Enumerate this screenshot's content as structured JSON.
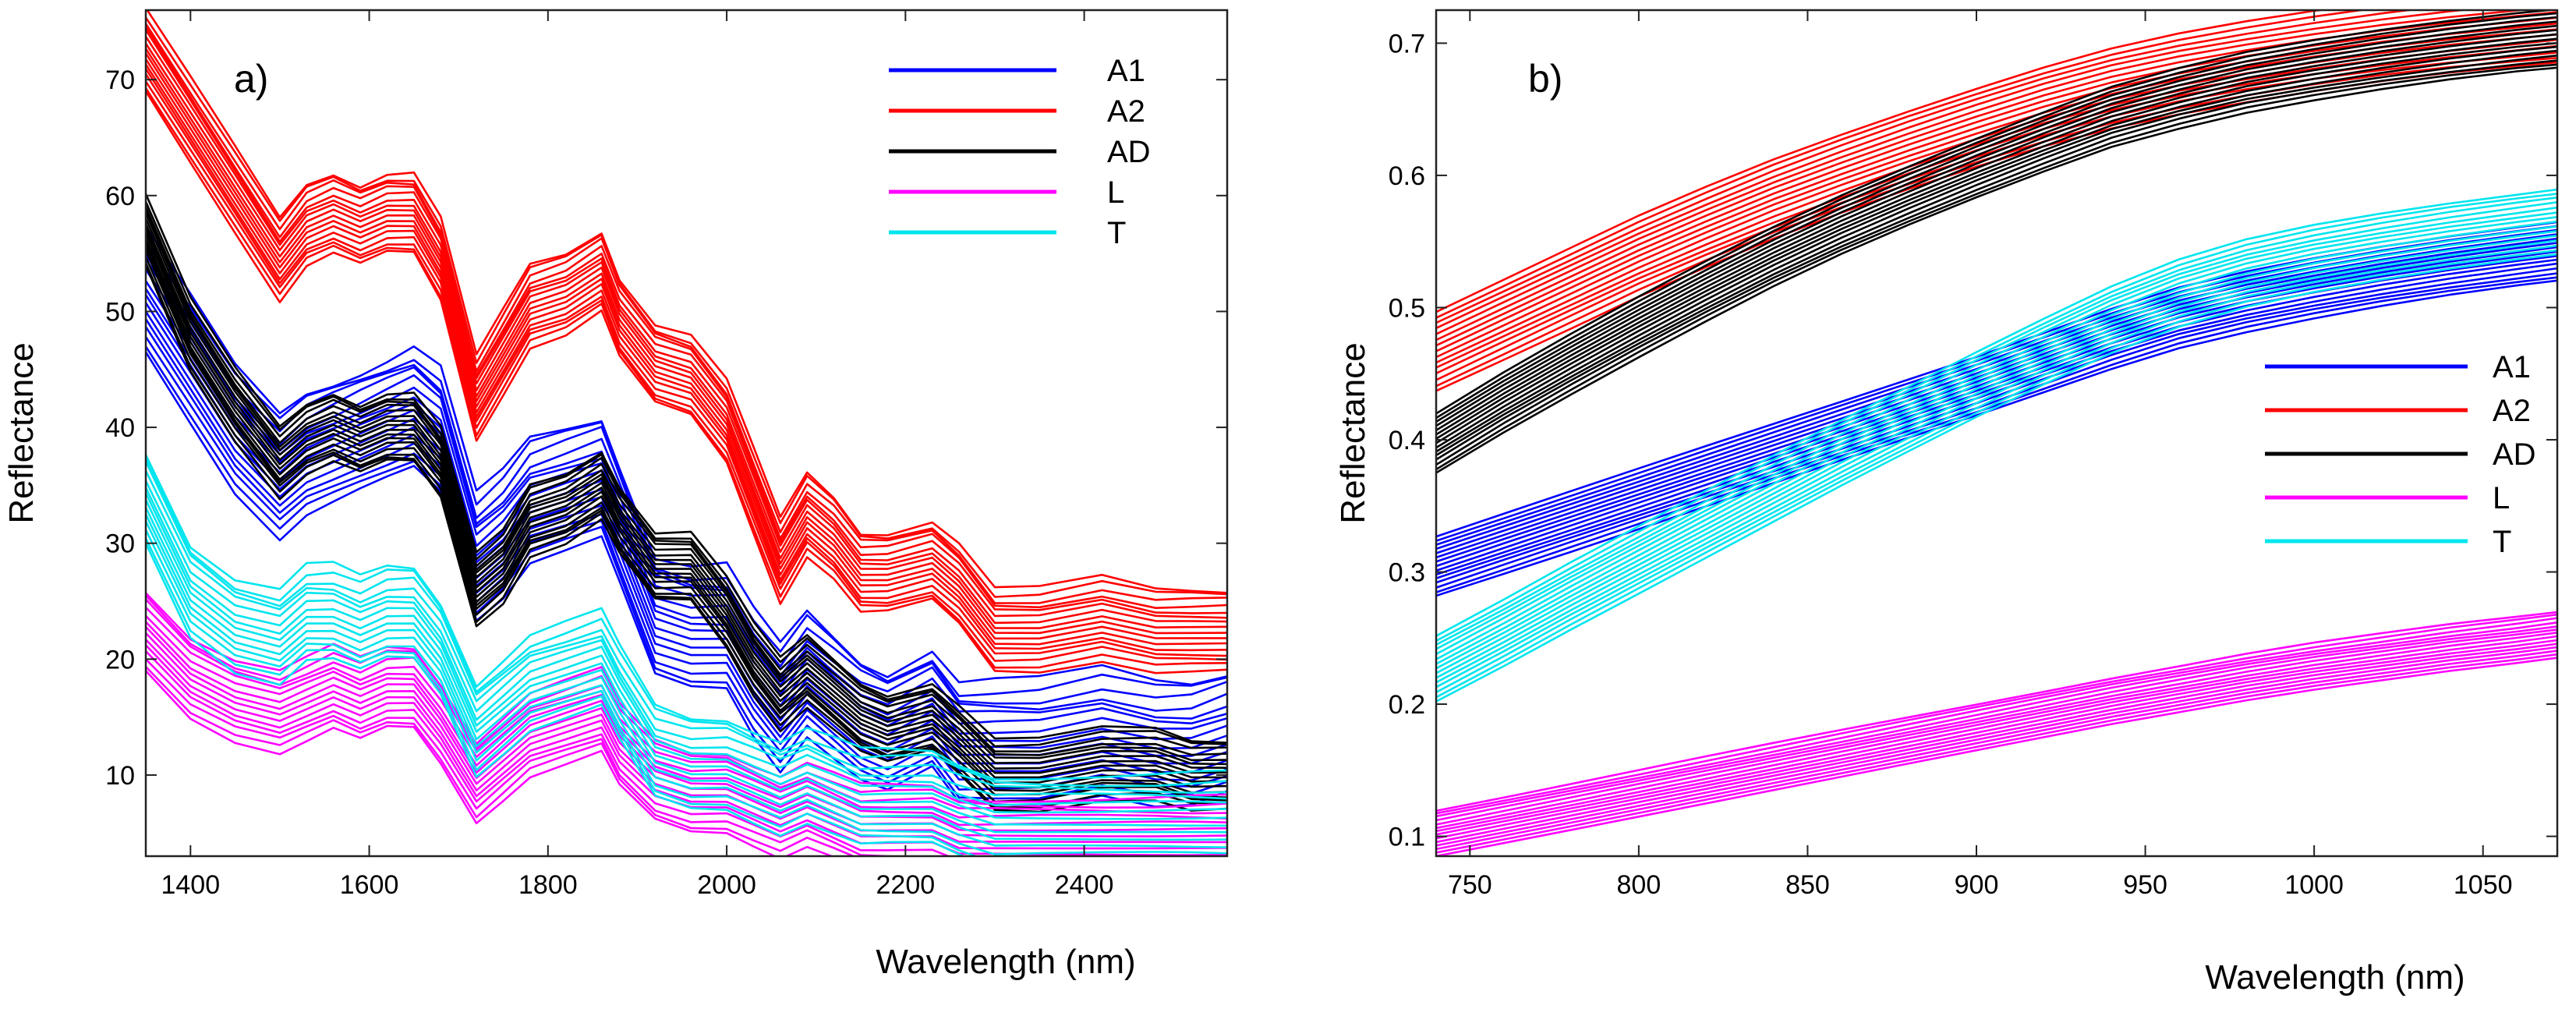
{
  "chart_data": [
    {
      "type": "line",
      "panel_label": "a)",
      "title": "",
      "xlabel": "Wavelength (nm)",
      "ylabel": "Reflectance",
      "xlim": [
        1350,
        2560
      ],
      "ylim": [
        3,
        76
      ],
      "xticks": [
        1400,
        1600,
        1800,
        2000,
        2200,
        2400
      ],
      "yticks": [
        10,
        20,
        30,
        40,
        50,
        60,
        70
      ],
      "grid": false,
      "legend_position": "top-right",
      "x": [
        1350,
        1400,
        1450,
        1500,
        1530,
        1560,
        1590,
        1620,
        1650,
        1680,
        1720,
        1750,
        1780,
        1820,
        1860,
        1880,
        1920,
        1960,
        2000,
        2030,
        2060,
        2090,
        2120,
        2150,
        2180,
        2230,
        2260,
        2300,
        2350,
        2420,
        2480,
        2520,
        2560
      ],
      "series": [
        {
          "name": "A1",
          "color": "#0000ff",
          "count": 16,
          "spread": [
            -3.5,
            7
          ],
          "values": [
            50,
            44,
            38,
            34,
            36,
            37,
            38,
            39,
            40,
            38,
            27,
            29,
            32,
            33,
            34,
            30,
            22,
            21,
            21,
            17,
            14,
            17,
            15,
            13,
            12,
            14,
            11,
            11,
            11,
            12,
            11,
            11,
            12
          ]
        },
        {
          "name": "A2",
          "color": "#ff0000",
          "count": 16,
          "spread": [
            -3,
            4
          ],
          "values": [
            72,
            66,
            60,
            54,
            57,
            58,
            57,
            58,
            58,
            54,
            42,
            46,
            50,
            51,
            53,
            49,
            45,
            44,
            40,
            34,
            28,
            32,
            30,
            27,
            27,
            28,
            26,
            22,
            22,
            23,
            22,
            22,
            22
          ]
        },
        {
          "name": "AD",
          "color": "#000000",
          "count": 16,
          "spread": [
            -3,
            3
          ],
          "values": [
            57,
            48,
            42,
            37,
            39,
            40,
            39,
            40,
            40,
            37,
            26,
            28,
            32,
            33,
            35,
            32,
            28,
            28,
            24,
            20,
            17,
            19,
            17,
            15,
            14,
            15,
            13,
            10,
            10,
            11,
            11,
            10,
            10
          ]
        },
        {
          "name": "L",
          "color": "#ff00ff",
          "count": 14,
          "spread": [
            -3,
            4
          ],
          "values": [
            22,
            18,
            16,
            15,
            16,
            17,
            16,
            17,
            17,
            14,
            9,
            11,
            13,
            14,
            15,
            12,
            9,
            8,
            8,
            7,
            6,
            7,
            6,
            5,
            5,
            5,
            4,
            4,
            4,
            4,
            4,
            4,
            4
          ]
        },
        {
          "name": "T",
          "color": "#00e5ee",
          "count": 14,
          "spread": [
            -3,
            5
          ],
          "values": [
            33,
            25,
            22,
            21,
            23,
            23,
            22,
            23,
            23,
            20,
            13,
            15,
            17,
            18,
            19,
            16,
            11,
            10,
            10,
            9,
            8,
            9,
            8,
            7,
            7,
            7,
            6,
            5,
            5,
            5,
            5,
            5,
            5
          ]
        }
      ]
    },
    {
      "type": "line",
      "panel_label": "b)",
      "title": "",
      "xlabel": "Wavelength (nm)",
      "ylabel": "Reflectance",
      "xlim": [
        740,
        1072
      ],
      "ylim": [
        0.085,
        0.725
      ],
      "xticks": [
        750,
        800,
        850,
        900,
        950,
        1000,
        1050
      ],
      "yticks": [
        0.1,
        0.2,
        0.3,
        0.4,
        0.5,
        0.6,
        0.7
      ],
      "grid": false,
      "legend_position": "center-right",
      "x": [
        740,
        760,
        780,
        800,
        820,
        840,
        860,
        880,
        900,
        920,
        940,
        960,
        980,
        1000,
        1020,
        1040,
        1060,
        1072
      ],
      "series": [
        {
          "name": "A1",
          "color": "#0000ff",
          "count": 15,
          "spread": [
            -0.03,
            0.015
          ],
          "values": [
            0.312,
            0.329,
            0.346,
            0.363,
            0.38,
            0.397,
            0.414,
            0.431,
            0.448,
            0.466,
            0.484,
            0.5,
            0.512,
            0.522,
            0.531,
            0.539,
            0.546,
            0.55
          ]
        },
        {
          "name": "A2",
          "color": "#ff0000",
          "count": 15,
          "spread": [
            -0.035,
            0.025
          ],
          "values": [
            0.472,
            0.496,
            0.52,
            0.544,
            0.566,
            0.587,
            0.606,
            0.624,
            0.641,
            0.657,
            0.671,
            0.682,
            0.691,
            0.699,
            0.706,
            0.712,
            0.717,
            0.72
          ]
        },
        {
          "name": "AD",
          "color": "#000000",
          "count": 15,
          "spread": [
            -0.03,
            0.015
          ],
          "values": [
            0.405,
            0.436,
            0.465,
            0.493,
            0.52,
            0.546,
            0.57,
            0.592,
            0.613,
            0.633,
            0.652,
            0.666,
            0.678,
            0.687,
            0.695,
            0.702,
            0.708,
            0.711
          ]
        },
        {
          "name": "L",
          "color": "#ff00ff",
          "count": 14,
          "spread": [
            -0.005,
            0.03
          ],
          "values": [
            0.09,
            0.1,
            0.11,
            0.12,
            0.13,
            0.14,
            0.15,
            0.16,
            0.17,
            0.18,
            0.19,
            0.199,
            0.208,
            0.216,
            0.223,
            0.23,
            0.236,
            0.24
          ]
        },
        {
          "name": "T",
          "color": "#00e5ee",
          "count": 15,
          "spread": [
            -0.02,
            0.03
          ],
          "values": [
            0.222,
            0.249,
            0.277,
            0.304,
            0.331,
            0.358,
            0.385,
            0.411,
            0.437,
            0.462,
            0.486,
            0.506,
            0.521,
            0.532,
            0.541,
            0.549,
            0.556,
            0.56
          ]
        }
      ]
    }
  ]
}
